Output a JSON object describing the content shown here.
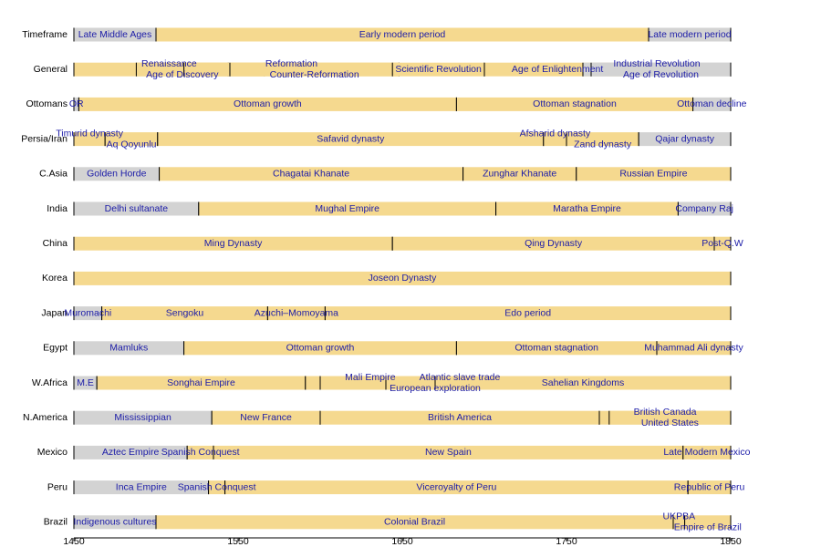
{
  "chart_data": {
    "type": "timeline",
    "xlim": [
      1450,
      1850
    ],
    "xticks": [
      1450,
      1550,
      1650,
      1750,
      1850
    ],
    "rows": [
      {
        "label": "Timeframe",
        "segments": [
          {
            "label": "Late Middle Ages",
            "start": 1450,
            "end": 1500,
            "color": "#d3d3d3"
          },
          {
            "label": "Early modern period",
            "start": 1500,
            "end": 1800,
            "color": "#f5d98f"
          },
          {
            "label": "Late modern period",
            "start": 1800,
            "end": 1850,
            "color": "#d3d3d3"
          }
        ]
      },
      {
        "label": "General",
        "segments": [
          {
            "label": "Renaissance",
            "start": 1450,
            "end": 1566,
            "color": "#f5d98f"
          },
          {
            "label": "Age of Discovery",
            "start": 1488,
            "end": 1544,
            "color": "#f5d98f"
          },
          {
            "label": "Reformation",
            "start": 1517,
            "end": 1648,
            "color": "#f5d98f"
          },
          {
            "label": "Counter-Reformation",
            "start": 1545,
            "end": 1648,
            "color": "#f5d98f"
          },
          {
            "label": "Scientific Revolution",
            "start": 1644,
            "end": 1700,
            "color": "#f5d98f"
          },
          {
            "label": "Age of Enlightenment",
            "start": 1700,
            "end": 1789,
            "color": "#f5d98f"
          },
          {
            "label": "Industrial Revolution",
            "start": 1760,
            "end": 1850,
            "color": "#d3d3d3"
          },
          {
            "label": "Age of Revolution",
            "start": 1765,
            "end": 1850,
            "color": "#d3d3d3"
          }
        ]
      },
      {
        "label": "Ottomans",
        "segments": [
          {
            "label": "OR",
            "start": 1450,
            "end": 1453,
            "color": "#d3d3d3"
          },
          {
            "label": "Ottoman growth",
            "start": 1453,
            "end": 1683,
            "color": "#f5d98f"
          },
          {
            "label": "Ottoman stagnation",
            "start": 1683,
            "end": 1827,
            "color": "#f5d98f"
          },
          {
            "label": "Ottoman decline",
            "start": 1827,
            "end": 1850,
            "color": "#d3d3d3"
          }
        ]
      },
      {
        "label": "Persia/Iran",
        "segments": [
          {
            "label": "Timurid dynasty",
            "start": 1450,
            "end": 1469,
            "color": "#f5d98f"
          },
          {
            "label": "Aq Qoyunlu",
            "start": 1469,
            "end": 1501,
            "color": "#f5d98f"
          },
          {
            "label": "Safavid dynasty",
            "start": 1501,
            "end": 1736,
            "color": "#f5d98f"
          },
          {
            "label": "Afsharid dynasty",
            "start": 1736,
            "end": 1750,
            "color": "#f5d98f"
          },
          {
            "label": "Zand dynasty",
            "start": 1750,
            "end": 1794,
            "color": "#f5d98f"
          },
          {
            "label": "Qajar dynasty",
            "start": 1794,
            "end": 1850,
            "color": "#d3d3d3"
          }
        ]
      },
      {
        "label": "C.Asia",
        "segments": [
          {
            "label": "Golden Horde",
            "start": 1450,
            "end": 1502,
            "color": "#d3d3d3"
          },
          {
            "label": "Chagatai Khanate",
            "start": 1502,
            "end": 1687,
            "color": "#f5d98f"
          },
          {
            "label": "Zunghar Khanate",
            "start": 1687,
            "end": 1756,
            "color": "#f5d98f"
          },
          {
            "label": "Russian Empire",
            "start": 1756,
            "end": 1850,
            "color": "#f5d98f"
          }
        ]
      },
      {
        "label": "India",
        "segments": [
          {
            "label": "Delhi sultanate",
            "start": 1450,
            "end": 1526,
            "color": "#d3d3d3"
          },
          {
            "label": "Mughal Empire",
            "start": 1526,
            "end": 1707,
            "color": "#f5d98f"
          },
          {
            "label": "Maratha Empire",
            "start": 1707,
            "end": 1818,
            "color": "#f5d98f"
          },
          {
            "label": "Company Raj",
            "start": 1818,
            "end": 1850,
            "color": "#d3d3d3"
          }
        ]
      },
      {
        "label": "China",
        "segments": [
          {
            "label": "Ming Dynasty",
            "start": 1450,
            "end": 1644,
            "color": "#f5d98f"
          },
          {
            "label": "Qing Dynasty",
            "start": 1644,
            "end": 1840,
            "color": "#f5d98f"
          },
          {
            "label": "Post-Q.W",
            "start": 1840,
            "end": 1850,
            "color": "#f5d98f"
          }
        ]
      },
      {
        "label": "Korea",
        "segments": [
          {
            "label": "Joseon Dynasty",
            "start": 1450,
            "end": 1850,
            "color": "#f5d98f"
          }
        ]
      },
      {
        "label": "Japan",
        "segments": [
          {
            "label": "Muromachi",
            "start": 1450,
            "end": 1467,
            "color": "#d3d3d3"
          },
          {
            "label": "Sengoku",
            "start": 1467,
            "end": 1568,
            "color": "#f5d98f"
          },
          {
            "label": "Azuchi–Momoyama",
            "start": 1568,
            "end": 1603,
            "color": "#f5d98f"
          },
          {
            "label": "Edo period",
            "start": 1603,
            "end": 1850,
            "color": "#f5d98f"
          }
        ]
      },
      {
        "label": "Egypt",
        "segments": [
          {
            "label": "Mamluks",
            "start": 1450,
            "end": 1517,
            "color": "#d3d3d3"
          },
          {
            "label": "Ottoman growth",
            "start": 1517,
            "end": 1683,
            "color": "#f5d98f"
          },
          {
            "label": "Ottoman stagnation",
            "start": 1683,
            "end": 1805,
            "color": "#f5d98f"
          },
          {
            "label": "Muhammad Ali dynasty",
            "start": 1805,
            "end": 1850,
            "color": "#f5d98f"
          }
        ]
      },
      {
        "label": "W.Africa",
        "segments": [
          {
            "label": "M.E",
            "start": 1450,
            "end": 1464,
            "color": "#d3d3d3"
          },
          {
            "label": "Songhai Empire",
            "start": 1464,
            "end": 1591,
            "color": "#f5d98f"
          },
          {
            "label": "Mali Empire",
            "start": 1591,
            "end": 1670,
            "color": "#f5d98f"
          },
          {
            "label": "European exploration",
            "start": 1600,
            "end": 1740,
            "color": "#f5d98f"
          },
          {
            "label": "Atlantic slave trade",
            "start": 1640,
            "end": 1730,
            "color": "#f5d98f"
          },
          {
            "label": "Sahelian Kingdoms",
            "start": 1670,
            "end": 1850,
            "color": "#f5d98f"
          }
        ]
      },
      {
        "label": "N.America",
        "segments": [
          {
            "label": "Mississippian",
            "start": 1450,
            "end": 1534,
            "color": "#d3d3d3"
          },
          {
            "label": "New France",
            "start": 1534,
            "end": 1600,
            "color": "#f5d98f"
          },
          {
            "label": "British America",
            "start": 1600,
            "end": 1770,
            "color": "#f5d98f"
          },
          {
            "label": "British Canada",
            "start": 1770,
            "end": 1850,
            "color": "#f5d98f"
          },
          {
            "label": "United States",
            "start": 1776,
            "end": 1850,
            "color": "#f5d98f"
          }
        ]
      },
      {
        "label": "Mexico",
        "segments": [
          {
            "label": "Aztec Empire",
            "start": 1450,
            "end": 1519,
            "color": "#d3d3d3"
          },
          {
            "label": "Spanish Conquest",
            "start": 1519,
            "end": 1535,
            "color": "#f5d98f"
          },
          {
            "label": "New Spain",
            "start": 1535,
            "end": 1821,
            "color": "#f5d98f"
          },
          {
            "label": "Late Modern Mexico",
            "start": 1821,
            "end": 1850,
            "color": "#f5d98f"
          }
        ]
      },
      {
        "label": "Peru",
        "segments": [
          {
            "label": "Inca Empire",
            "start": 1450,
            "end": 1532,
            "color": "#d3d3d3"
          },
          {
            "label": "Spanish Conquest",
            "start": 1532,
            "end": 1542,
            "color": "#f5d98f"
          },
          {
            "label": "Viceroyalty of Peru",
            "start": 1542,
            "end": 1824,
            "color": "#f5d98f"
          },
          {
            "label": "Republic of Peru",
            "start": 1824,
            "end": 1850,
            "color": "#f5d98f"
          }
        ]
      },
      {
        "label": "Brazil",
        "segments": [
          {
            "label": "Indigenous cultures",
            "start": 1450,
            "end": 1500,
            "color": "#d3d3d3"
          },
          {
            "label": "Colonial Brazil",
            "start": 1500,
            "end": 1815,
            "color": "#f5d98f"
          },
          {
            "label": "UKPBA",
            "start": 1815,
            "end": 1822,
            "color": "#f5d98f"
          },
          {
            "label": "Empire of Brazil",
            "start": 1822,
            "end": 1850,
            "color": "#f5d98f"
          }
        ]
      }
    ]
  }
}
